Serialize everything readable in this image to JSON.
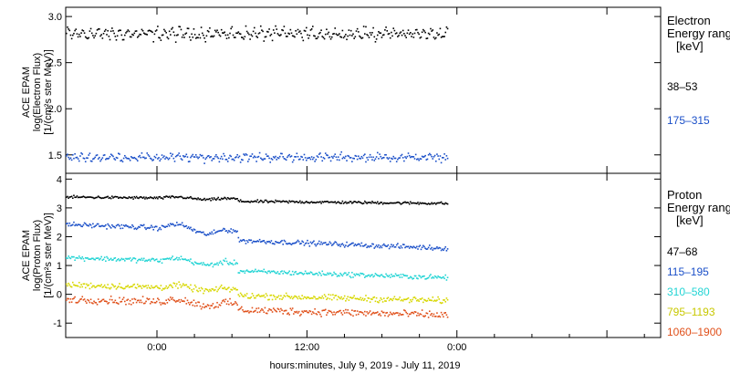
{
  "chart_data": [
    {
      "type": "scatter",
      "panel": "electron",
      "ylabel_lines": [
        "ACE EPAM",
        "log(Electron Flux)",
        "[1/(cm²s ster MeV)]"
      ],
      "legend_title": [
        "Electron",
        "Energy range",
        "[keV]"
      ],
      "ylim": [
        1.3,
        3.1
      ],
      "yticks": [
        "1.5",
        "2.0",
        "2.5",
        "3.0"
      ],
      "ytick_values": [
        1.5,
        2.0,
        2.5,
        3.0
      ],
      "x_range_hours": [
        -7.3,
        40.3
      ],
      "data_end_hour": 23.2,
      "series": [
        {
          "name": "38–53",
          "color": "#000000",
          "mean": 2.82,
          "spread": 0.07,
          "wave": 0.04
        },
        {
          "name": "175–315",
          "color": "#1a4fc8",
          "mean": 1.48,
          "spread": 0.05,
          "wave": 0.02
        }
      ]
    },
    {
      "type": "scatter",
      "panel": "proton",
      "ylabel_lines": [
        "ACE EPAM",
        "log(Proton Flux)",
        "[1/(cm²s ster MeV)]"
      ],
      "legend_title": [
        "Proton",
        "Energy range",
        "[keV]"
      ],
      "ylim": [
        -1.5,
        4.2
      ],
      "yticks": [
        "4",
        "3",
        "2",
        "1",
        "0",
        "-1"
      ],
      "ytick_values": [
        4,
        3,
        2,
        1,
        0,
        -1
      ],
      "x_range_hours": [
        -7.3,
        40.3
      ],
      "data_end_hour": 23.2,
      "series": [
        {
          "name": "47–68",
          "color": "#000000",
          "start": 3.4,
          "end": 3.18,
          "step": 0.08,
          "noise": 0.04
        },
        {
          "name": "115–195",
          "color": "#1a4fc8",
          "start": 2.45,
          "end": 1.62,
          "step": 0.3,
          "noise": 0.07
        },
        {
          "name": "310–580",
          "color": "#22d4d4",
          "start": 1.3,
          "end": 0.6,
          "step": 0.2,
          "noise": 0.07
        },
        {
          "name": "795–1193",
          "color": "#d7d700",
          "start": 0.35,
          "end": -0.2,
          "step": 0.15,
          "noise": 0.09
        },
        {
          "name": "1060–1900",
          "color": "#e0501a",
          "start": -0.15,
          "end": -0.7,
          "step": 0.2,
          "noise": 0.11
        }
      ]
    }
  ],
  "x_axis": {
    "ticks": [
      {
        "label": "0:00",
        "hour": 0
      },
      {
        "label": "12:00",
        "hour": 12
      },
      {
        "label": "0:00",
        "hour": 24
      },
      {
        "label": "",
        "hour": 36
      }
    ],
    "xlabel": "hours:minutes, July  9, 2019 - July 11, 2019"
  },
  "colors": {
    "frame": "#000000"
  }
}
